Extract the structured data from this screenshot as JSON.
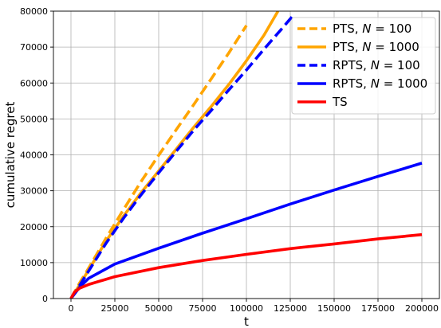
{
  "chart_data": {
    "type": "line",
    "xlabel": "t",
    "ylabel": "cumulative regret",
    "xlim": [
      -10000,
      210000
    ],
    "ylim": [
      0,
      80000
    ],
    "xticks": [
      0,
      25000,
      50000,
      75000,
      100000,
      125000,
      150000,
      175000,
      200000
    ],
    "yticks": [
      0,
      10000,
      20000,
      30000,
      40000,
      50000,
      60000,
      70000,
      80000
    ],
    "grid": true,
    "legend_position": "top-right",
    "series": [
      {
        "name": "PTS, N = 100",
        "label_parts": [
          "PTS, ",
          "N",
          " = 100"
        ],
        "color": "#ffa500",
        "style": "dashed",
        "x": [
          0,
          5000,
          10000,
          20000,
          30000,
          40000,
          50000,
          60000,
          70000,
          80000,
          90000,
          100000
        ],
        "y": [
          0,
          4400,
          8400,
          16800,
          24800,
          32600,
          39900,
          47000,
          54000,
          61200,
          68400,
          76000
        ]
      },
      {
        "name": "PTS, N = 1000",
        "label_parts": [
          "PTS, ",
          "N",
          " = 1000"
        ],
        "color": "#ffa500",
        "style": "solid",
        "x": [
          0,
          5000,
          10000,
          20000,
          30000,
          40000,
          50000,
          60000,
          70000,
          80000,
          90000,
          100000,
          110000,
          118000
        ],
        "y": [
          0,
          3900,
          7900,
          16000,
          23000,
          29500,
          35500,
          41600,
          47700,
          53500,
          59600,
          66200,
          73300,
          80000
        ]
      },
      {
        "name": "RPTS, N = 100",
        "label_parts": [
          "RPTS, ",
          "N",
          " = 100"
        ],
        "color": "#0000ff",
        "style": "dashed",
        "x": [
          0,
          5000,
          10000,
          20000,
          30000,
          40000,
          50000,
          60000,
          70000,
          80000,
          90000,
          100000,
          110000,
          120000,
          127000
        ],
        "y": [
          0,
          3700,
          7600,
          15400,
          22400,
          28900,
          35000,
          41000,
          46900,
          52400,
          58100,
          63600,
          69400,
          75000,
          79000
        ]
      },
      {
        "name": "RPTS, N = 1000",
        "label_parts": [
          "RPTS, ",
          "N",
          " = 1000"
        ],
        "color": "#0000ff",
        "style": "solid",
        "x": [
          0,
          5000,
          10000,
          25000,
          50000,
          75000,
          100000,
          125000,
          150000,
          175000,
          200000
        ],
        "y": [
          0,
          3200,
          5600,
          9600,
          14000,
          18200,
          22200,
          26300,
          30200,
          34000,
          37700
        ]
      },
      {
        "name": "TS",
        "label_parts": [
          "TS",
          "",
          ""
        ],
        "color": "#ff0000",
        "style": "solid",
        "x": [
          0,
          2000,
          5000,
          10000,
          25000,
          50000,
          75000,
          100000,
          125000,
          150000,
          175000,
          200000
        ],
        "y": [
          0,
          1800,
          2900,
          3900,
          6100,
          8600,
          10600,
          12300,
          13900,
          15200,
          16600,
          17800
        ]
      }
    ]
  }
}
